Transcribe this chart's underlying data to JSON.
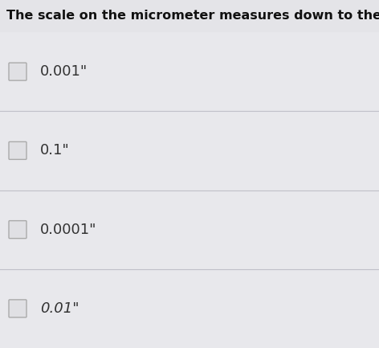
{
  "title": "The scale on the micrometer measures down to the...",
  "options": [
    "0.001\"",
    "0.1\"",
    "0.0001\"",
    "0.01\""
  ],
  "background_color": "#e8e8ec",
  "title_fontsize": 11.5,
  "option_fontsize": 13,
  "checkbox_color": "#aaaaaa",
  "checkbox_face": "#e0e0e4",
  "divider_color": "#c0c0c8",
  "text_color": "#333333",
  "title_color": "#111111",
  "title_bg": "#e4e4e8",
  "row_bg": "#e8e8ec",
  "last_italic": true
}
